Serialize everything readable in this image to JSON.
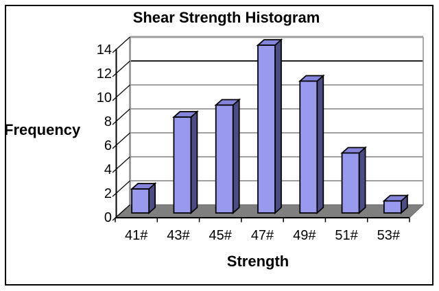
{
  "window": {
    "background_color": "#ffffff",
    "border_color": "#000000"
  },
  "chart_data": {
    "type": "bar",
    "style": "3d-column-histogram",
    "title": "Shear Strength Histogram",
    "xlabel": "Strength",
    "ylabel": "Frequency",
    "categories": [
      "41#",
      "43#",
      "45#",
      "47#",
      "49#",
      "51#",
      "53#"
    ],
    "values": [
      2,
      8,
      9,
      14,
      11,
      5,
      1
    ],
    "ylim": [
      0,
      14
    ],
    "ytick_step": 2,
    "yticks": [
      0,
      2,
      4,
      6,
      8,
      10,
      12,
      14
    ],
    "grid": true,
    "dark_gridline_value": 12,
    "legend": false,
    "colors": {
      "bar_front": "#9999EE",
      "bar_top": "#8484DB",
      "bar_side": "#4D4D86",
      "bar_outline": "#000000",
      "floor": "#7F7F7F",
      "floor_edge": "#666666",
      "wall_fill": "#FFFFFF",
      "wall_edge": "#9C9C9C",
      "gridline": "#808080",
      "gridline_dark": "#000000",
      "axis": "#000000",
      "tick_label": "#000000"
    }
  }
}
